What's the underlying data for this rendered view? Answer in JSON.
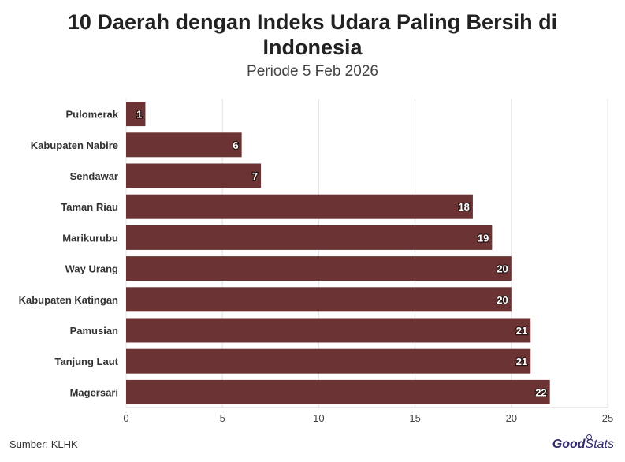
{
  "header": {
    "title_line1": "10 Daerah dengan Indeks Udara Paling Bersih di",
    "title_line2": "Indonesia",
    "subtitle": "Periode 5 Feb 2026"
  },
  "footer": {
    "source": "Sumber: KLHK",
    "brand_bold": "Good",
    "brand_regular": "Stats"
  },
  "chart_data": {
    "type": "bar",
    "orientation": "horizontal",
    "title": "10 Daerah dengan Indeks Udara Paling Bersih di Indonesia",
    "subtitle": "Periode 5 Feb 2026",
    "xlabel": "",
    "ylabel": "",
    "xlim": [
      0,
      25
    ],
    "xticks": [
      0,
      5,
      10,
      15,
      20,
      25
    ],
    "grid": true,
    "bar_color": "#6b3333",
    "categories": [
      "Pulomerak",
      "Kabupaten Nabire",
      "Sendawar",
      "Taman Riau",
      "Marikurubu",
      "Way Urang",
      "Kabupaten Katingan",
      "Pamusian",
      "Tanjung Laut",
      "Magersari"
    ],
    "values": [
      1,
      6,
      7,
      18,
      19,
      20,
      20,
      21,
      21,
      22
    ]
  }
}
